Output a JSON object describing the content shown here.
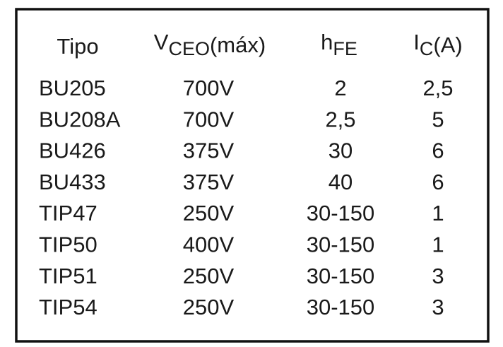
{
  "table": {
    "header": [
      {
        "text": "Tipo"
      },
      {
        "text": "V",
        "sub": "CEO",
        "after": "(máx)"
      },
      {
        "text": "h",
        "sub": "FE"
      },
      {
        "text": "I",
        "sub": "C",
        "after": "(A)"
      }
    ],
    "rows": [
      [
        "BU205",
        "700V",
        "2",
        "2,5"
      ],
      [
        "BU208A",
        "700V",
        "2,5",
        "5"
      ],
      [
        "BU426",
        "375V",
        "30",
        "6"
      ],
      [
        "BU433",
        "375V",
        "40",
        "6"
      ],
      [
        "TIP47",
        "250V",
        "30-150",
        "1"
      ],
      [
        "TIP50",
        "400V",
        "30-150",
        "1"
      ],
      [
        "TIP51",
        "250V",
        "30-150",
        "3"
      ],
      [
        "TIP54",
        "250V",
        "30-150",
        "3"
      ]
    ]
  }
}
